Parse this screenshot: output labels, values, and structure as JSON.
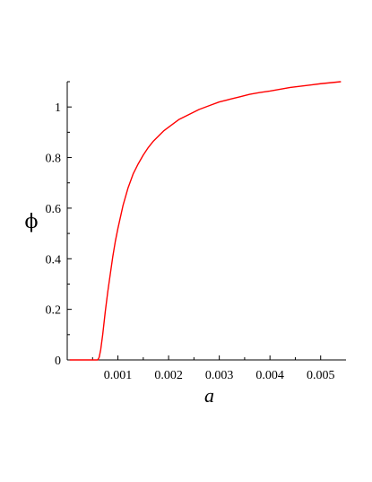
{
  "chart_data": {
    "type": "line",
    "title": "",
    "xlabel": "a",
    "ylabel": "ϕ",
    "xlim": [
      0,
      0.0055
    ],
    "ylim": [
      0,
      1.1
    ],
    "grid": false,
    "legend": "none",
    "x_ticks": [
      0.001,
      0.002,
      0.003,
      0.004,
      0.005
    ],
    "x_tick_labels": [
      "0.001",
      "0.002",
      "0.003",
      "0.004",
      "0.005"
    ],
    "y_ticks": [
      0,
      0.2,
      0.4,
      0.6,
      0.8,
      1
    ],
    "y_tick_labels": [
      "0",
      "0.2",
      "0.4",
      "0.6",
      "0.8",
      "1"
    ],
    "series": [
      {
        "color": "#ff0000",
        "x": [
          5e-05,
          0.0003,
          0.0006,
          0.00063,
          0.00066,
          0.0007,
          0.00075,
          0.0008,
          0.00085,
          0.0009,
          0.00095,
          0.001,
          0.0011,
          0.0012,
          0.0013,
          0.0014,
          0.0015,
          0.0016,
          0.0017,
          0.0018,
          0.0019,
          0.002,
          0.0022,
          0.0024,
          0.0026,
          0.0028,
          0.003,
          0.0032,
          0.0034,
          0.0036,
          0.0038,
          0.004,
          0.0042,
          0.0044,
          0.0046,
          0.0048,
          0.005,
          0.0052,
          0.0054
        ],
        "y": [
          0,
          0,
          0,
          0.01,
          0.04,
          0.1,
          0.19,
          0.27,
          0.34,
          0.41,
          0.47,
          0.52,
          0.61,
          0.68,
          0.735,
          0.775,
          0.81,
          0.84,
          0.865,
          0.885,
          0.905,
          0.92,
          0.95,
          0.97,
          0.99,
          1.005,
          1.02,
          1.03,
          1.04,
          1.05,
          1.057,
          1.063,
          1.07,
          1.077,
          1.082,
          1.087,
          1.092,
          1.096,
          1.1
        ]
      }
    ]
  }
}
